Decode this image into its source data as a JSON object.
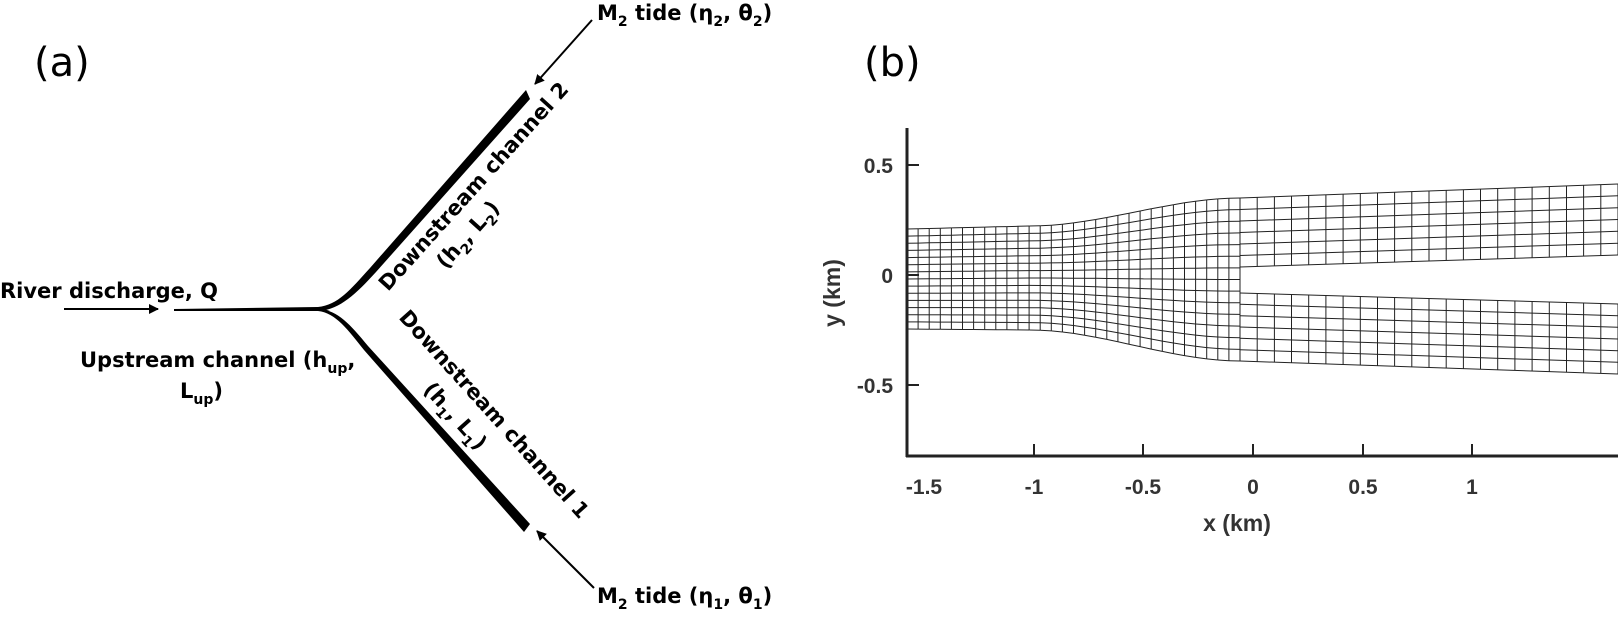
{
  "panel_a": {
    "label": "(a)",
    "river_label": "River discharge, Q",
    "upstream_label_line1": "Upstream channel (h",
    "upstream_sub_h": "up",
    "upstream_comma": ",",
    "upstream_label_L": "L",
    "upstream_sub_L": "up",
    "upstream_close": ")",
    "channel2_name": "Downstream channel 2",
    "channel2_params_open": "(h",
    "channel2_sub_h": "2",
    "channel2_params_mid": ", L",
    "channel2_sub_L": "2",
    "channel2_params_close": ")",
    "channel1_name": "Downstream channel 1",
    "channel1_params_open": "(h",
    "channel1_sub_h": "1",
    "channel1_params_mid": ", L",
    "channel1_sub_L": "1",
    "channel1_params_close": ")",
    "tide_top_M": "M",
    "tide_top_sub": "2",
    "tide_top_text": " tide (η",
    "tide_top_eta_sub": "2",
    "tide_top_mid": ", θ",
    "tide_top_theta_sub": "2",
    "tide_top_close": ")",
    "tide_bot_M": "M",
    "tide_bot_sub": "2",
    "tide_bot_text": " tide (η",
    "tide_bot_eta_sub": "1",
    "tide_bot_mid": ", θ",
    "tide_bot_theta_sub": "1",
    "tide_bot_close": ")"
  },
  "panel_b": {
    "label": "(b)",
    "xlabel": "x (km)",
    "ylabel": "y (km)",
    "x_ticks": [
      "-1.5",
      "-1",
      "-0.5",
      "0",
      "0.5",
      "1"
    ],
    "y_ticks": [
      "0.5",
      "0",
      "-0.5"
    ]
  }
}
